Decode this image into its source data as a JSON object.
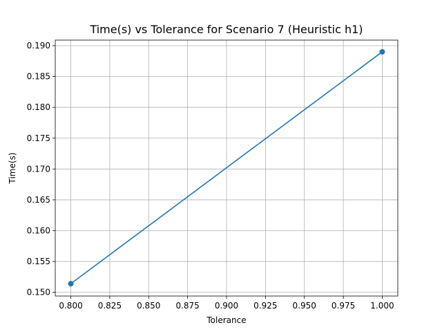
{
  "chart_data": {
    "type": "line",
    "title": "Time(s) vs Tolerance for Scenario 7 (Heuristic h1)",
    "xlabel": "Tolerance",
    "ylabel": "Time(s)",
    "xlim": [
      0.79,
      1.01
    ],
    "ylim": [
      0.1494,
      0.1909
    ],
    "grid": true,
    "xticks": [
      0.8,
      0.825,
      0.85,
      0.875,
      0.9,
      0.925,
      0.95,
      0.975,
      1.0
    ],
    "xtick_labels": [
      "0.800",
      "0.825",
      "0.850",
      "0.875",
      "0.900",
      "0.925",
      "0.950",
      "0.975",
      "1.000"
    ],
    "yticks": [
      0.15,
      0.155,
      0.16,
      0.165,
      0.17,
      0.175,
      0.18,
      0.185,
      0.19
    ],
    "ytick_labels": [
      "0.150",
      "0.155",
      "0.160",
      "0.165",
      "0.170",
      "0.175",
      "0.180",
      "0.185",
      "0.190"
    ],
    "color": "#1f77b4",
    "series": [
      {
        "x": [
          0.8,
          1.0
        ],
        "y": [
          0.1514,
          0.189
        ],
        "marker": "circle"
      }
    ]
  }
}
